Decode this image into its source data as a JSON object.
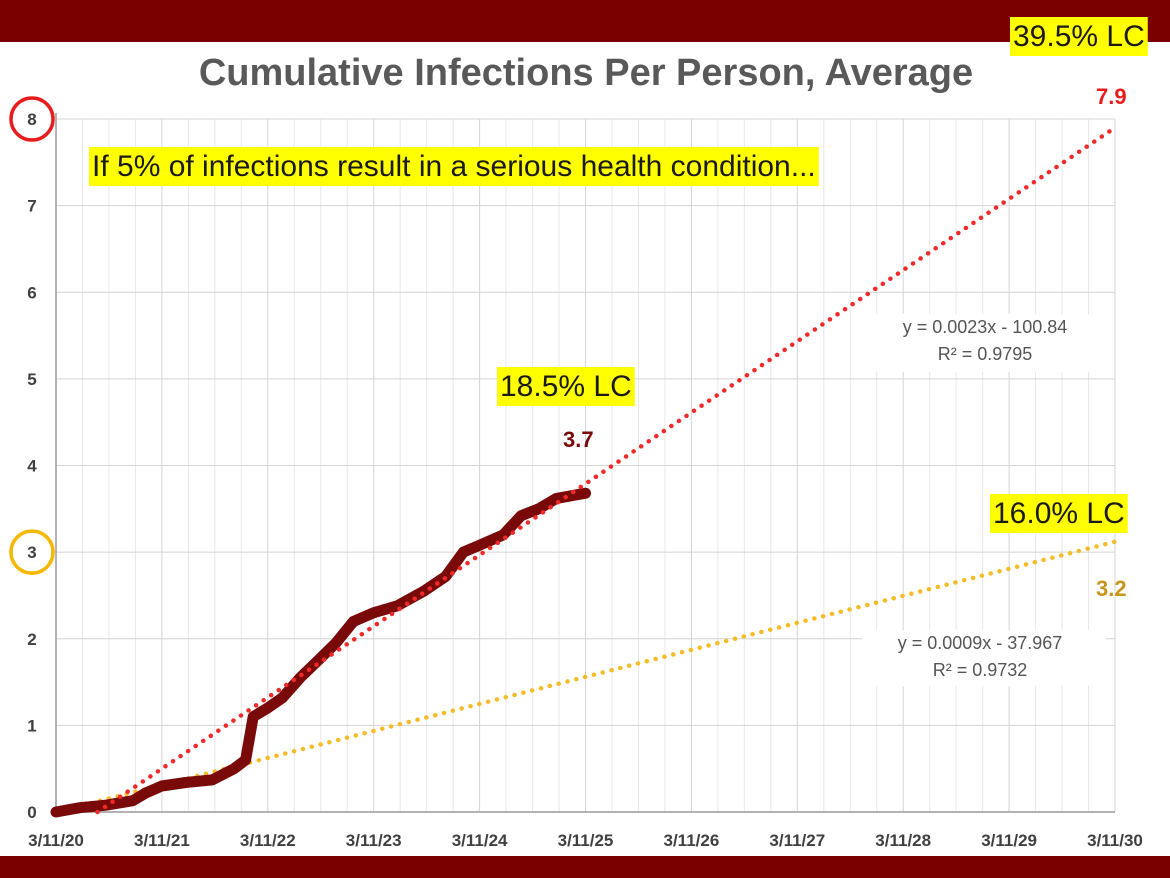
{
  "chart_data": {
    "type": "line",
    "title": "Cumulative Infections Per Person, Average",
    "subtitle": "If 5% of infections result in a serious health condition...",
    "x_tick_labels": [
      "3/11/20",
      "3/11/21",
      "3/11/22",
      "3/11/23",
      "3/11/24",
      "3/11/25",
      "3/11/26",
      "3/11/27",
      "3/11/28",
      "3/11/29",
      "3/11/30"
    ],
    "y_tick_labels": [
      "0",
      "1",
      "2",
      "3",
      "4",
      "5",
      "6",
      "7",
      "8"
    ],
    "xlim": [
      "2020-03-11",
      "2030-03-11"
    ],
    "ylim": [
      0,
      8
    ],
    "grid": true,
    "series": [
      {
        "kind": "observed",
        "color": "#7a0a0a",
        "points": [
          [
            "2020-03-11",
            0.0
          ],
          [
            "2020-06-01",
            0.05
          ],
          [
            "2020-09-01",
            0.08
          ],
          [
            "2020-12-01",
            0.13
          ],
          [
            "2021-01-15",
            0.22
          ],
          [
            "2021-03-11",
            0.3
          ],
          [
            "2021-06-01",
            0.34
          ],
          [
            "2021-09-01",
            0.37
          ],
          [
            "2021-11-15",
            0.5
          ],
          [
            "2021-12-25",
            0.6
          ],
          [
            "2022-01-20",
            1.1
          ],
          [
            "2022-03-11",
            1.2
          ],
          [
            "2022-05-01",
            1.32
          ],
          [
            "2022-07-01",
            1.55
          ],
          [
            "2022-09-01",
            1.75
          ],
          [
            "2022-11-01",
            1.95
          ],
          [
            "2023-01-01",
            2.2
          ],
          [
            "2023-03-11",
            2.3
          ],
          [
            "2023-06-01",
            2.38
          ],
          [
            "2023-09-01",
            2.55
          ],
          [
            "2023-11-15",
            2.72
          ],
          [
            "2024-01-15",
            3.0
          ],
          [
            "2024-03-11",
            3.08
          ],
          [
            "2024-06-01",
            3.2
          ],
          [
            "2024-08-01",
            3.42
          ],
          [
            "2024-10-01",
            3.5
          ],
          [
            "2024-12-01",
            3.62
          ],
          [
            "2025-03-11",
            3.68
          ]
        ]
      },
      {
        "kind": "trend",
        "color": "#ee2a2a",
        "equation": "y = 0.0023x - 100.84",
        "r_squared": "R² = 0.9795",
        "points": [
          [
            "2020-08-01",
            0.0
          ],
          [
            "2030-03-11",
            7.9
          ]
        ]
      },
      {
        "kind": "trend",
        "color": "#f5bc28",
        "equation": "y = 0.0009x - 37.967",
        "r_squared": "R² = 0.9732",
        "points": [
          [
            "2020-03-11",
            0.0
          ],
          [
            "2030-03-11",
            3.12
          ]
        ]
      }
    ],
    "annotations": {
      "top_right_pct": "39.5% LC",
      "middle_pct": "18.5% LC",
      "right_pct": "16.0% LC",
      "red_endpoint_value": "7.9",
      "current_value": "3.7",
      "yellow_endpoint_value": "3.2"
    },
    "colors": {
      "band": "#7a0000",
      "highlight": "#ffff00",
      "red_circle": "#e81c1c",
      "yellow_circle": "#f5b800",
      "current_value_text": "#7a0a0a",
      "red_value_text": "#e81c1c",
      "yellow_value_text": "#c8961a"
    },
    "circled_y_ticks": [
      "8",
      "3"
    ]
  }
}
